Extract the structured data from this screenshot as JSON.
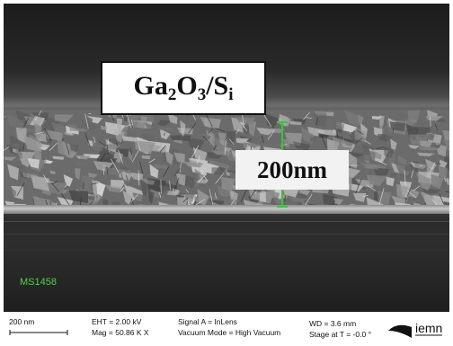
{
  "image": {
    "title_line": {
      "base1": "Ga",
      "sub1": "2",
      "base2": "O",
      "sub2": "3",
      "slash": "/S",
      "sub3": "i"
    },
    "thickness_label": "200nm",
    "sample_id": "MS1458"
  },
  "databar": {
    "scale_bar_label": "200 nm",
    "eht": "EHT = 2.00 kV",
    "mag": "Mag = 50.86 K X",
    "signal": "Signal A = InLens",
    "vacuum": "Vacuum Mode = High Vacuum",
    "wd": "WD = 3.6 mm",
    "stage": "Stage at T = -0.0 °",
    "logo_text": "iemn"
  },
  "colors": {
    "sample_id": "#4cd24c",
    "marker": "#37c837"
  }
}
